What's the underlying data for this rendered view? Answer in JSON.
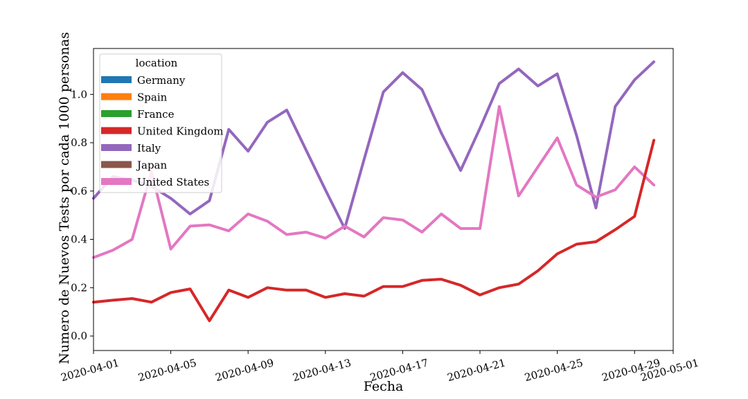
{
  "chart_data": {
    "type": "line",
    "xlabel": "Fecha",
    "ylabel": "Numero de Nuevos Tests por cada 1000 personas",
    "x_range": [
      "2020-04-01",
      "2020-05-01"
    ],
    "ylim": [
      -0.06,
      1.19
    ],
    "x_ticks": [
      "2020-04-01",
      "2020-04-05",
      "2020-04-09",
      "2020-04-13",
      "2020-04-17",
      "2020-04-21",
      "2020-04-25",
      "2020-04-29",
      "2020-05-01"
    ],
    "y_ticks": [
      "0.0",
      "0.2",
      "0.4",
      "0.6",
      "0.8",
      "1.0"
    ],
    "grid": false,
    "legend": {
      "title": "location",
      "placement": "upper-left",
      "entries": [
        {
          "name": "Germany",
          "color": "#1f77b4"
        },
        {
          "name": "Spain",
          "color": "#ff7f0e"
        },
        {
          "name": "France",
          "color": "#2ca02c"
        },
        {
          "name": "United Kingdom",
          "color": "#d62728"
        },
        {
          "name": "Italy",
          "color": "#9467bd"
        },
        {
          "name": "Japan",
          "color": "#8c564b"
        },
        {
          "name": "United States",
          "color": "#e377c2"
        }
      ]
    },
    "series": [
      {
        "name": "Italy",
        "color": "#9467bd",
        "points": [
          [
            "2020-04-01",
            0.57
          ],
          [
            "2020-04-02",
            0.66
          ],
          [
            "2020-04-03",
            0.645
          ],
          [
            "2020-04-04",
            0.62
          ],
          [
            "2020-04-05",
            0.57
          ],
          [
            "2020-04-06",
            0.505
          ],
          [
            "2020-04-07",
            0.56
          ],
          [
            "2020-04-08",
            0.855
          ],
          [
            "2020-04-09",
            0.765
          ],
          [
            "2020-04-10",
            0.885
          ],
          [
            "2020-04-11",
            0.935
          ],
          [
            "2020-04-12",
            0.77
          ],
          [
            "2020-04-13",
            0.605
          ],
          [
            "2020-04-14",
            0.445
          ],
          [
            "2020-04-15",
            0.73
          ],
          [
            "2020-04-16",
            1.01
          ],
          [
            "2020-04-17",
            1.09
          ],
          [
            "2020-04-18",
            1.02
          ],
          [
            "2020-04-19",
            0.84
          ],
          [
            "2020-04-20",
            0.685
          ],
          [
            "2020-04-21",
            0.86
          ],
          [
            "2020-04-22",
            1.045
          ],
          [
            "2020-04-23",
            1.105
          ],
          [
            "2020-04-24",
            1.035
          ],
          [
            "2020-04-25",
            1.085
          ],
          [
            "2020-04-26",
            0.83
          ],
          [
            "2020-04-27",
            0.53
          ],
          [
            "2020-04-28",
            0.95
          ],
          [
            "2020-04-29",
            1.06
          ],
          [
            "2020-04-30",
            1.135
          ]
        ]
      },
      {
        "name": "United States",
        "color": "#e377c2",
        "points": [
          [
            "2020-04-01",
            0.325
          ],
          [
            "2020-04-02",
            0.355
          ],
          [
            "2020-04-03",
            0.4
          ],
          [
            "2020-04-04",
            0.68
          ],
          [
            "2020-04-05",
            0.36
          ],
          [
            "2020-04-06",
            0.455
          ],
          [
            "2020-04-07",
            0.46
          ],
          [
            "2020-04-08",
            0.435
          ],
          [
            "2020-04-09",
            0.505
          ],
          [
            "2020-04-10",
            0.475
          ],
          [
            "2020-04-11",
            0.42
          ],
          [
            "2020-04-12",
            0.43
          ],
          [
            "2020-04-13",
            0.405
          ],
          [
            "2020-04-14",
            0.455
          ],
          [
            "2020-04-15",
            0.41
          ],
          [
            "2020-04-16",
            0.49
          ],
          [
            "2020-04-17",
            0.48
          ],
          [
            "2020-04-18",
            0.43
          ],
          [
            "2020-04-19",
            0.505
          ],
          [
            "2020-04-20",
            0.445
          ],
          [
            "2020-04-21",
            0.445
          ],
          [
            "2020-04-22",
            0.95
          ],
          [
            "2020-04-23",
            0.58
          ],
          [
            "2020-04-24",
            0.7
          ],
          [
            "2020-04-25",
            0.82
          ],
          [
            "2020-04-26",
            0.625
          ],
          [
            "2020-04-27",
            0.575
          ],
          [
            "2020-04-28",
            0.605
          ],
          [
            "2020-04-29",
            0.7
          ],
          [
            "2020-04-30",
            0.625
          ]
        ]
      },
      {
        "name": "United Kingdom",
        "color": "#d62728",
        "points": [
          [
            "2020-04-01",
            0.14
          ],
          [
            "2020-04-02",
            0.148
          ],
          [
            "2020-04-03",
            0.155
          ],
          [
            "2020-04-04",
            0.14
          ],
          [
            "2020-04-05",
            0.18
          ],
          [
            "2020-04-06",
            0.195
          ],
          [
            "2020-04-07",
            0.063
          ],
          [
            "2020-04-08",
            0.19
          ],
          [
            "2020-04-09",
            0.16
          ],
          [
            "2020-04-10",
            0.2
          ],
          [
            "2020-04-11",
            0.19
          ],
          [
            "2020-04-12",
            0.19
          ],
          [
            "2020-04-13",
            0.16
          ],
          [
            "2020-04-14",
            0.175
          ],
          [
            "2020-04-15",
            0.165
          ],
          [
            "2020-04-16",
            0.205
          ],
          [
            "2020-04-17",
            0.205
          ],
          [
            "2020-04-18",
            0.23
          ],
          [
            "2020-04-19",
            0.235
          ],
          [
            "2020-04-20",
            0.21
          ],
          [
            "2020-04-21",
            0.17
          ],
          [
            "2020-04-22",
            0.2
          ],
          [
            "2020-04-23",
            0.215
          ],
          [
            "2020-04-24",
            0.27
          ],
          [
            "2020-04-25",
            0.34
          ],
          [
            "2020-04-26",
            0.38
          ],
          [
            "2020-04-27",
            0.39
          ],
          [
            "2020-04-28",
            0.44
          ],
          [
            "2020-04-29",
            0.495
          ],
          [
            "2020-04-30",
            0.81
          ]
        ]
      }
    ]
  }
}
